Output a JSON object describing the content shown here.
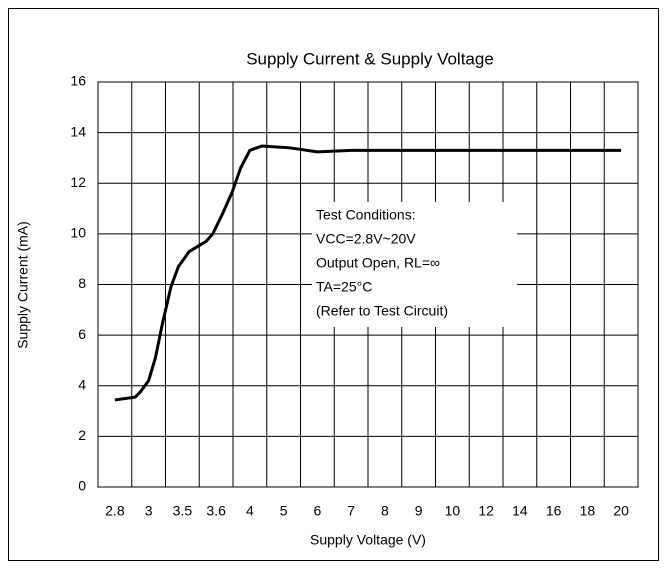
{
  "chart_data": {
    "type": "line",
    "title": "Supply Current & Supply Voltage",
    "x_label": "Supply Voltage (V)",
    "y_label": "Supply Current (mA)",
    "xticks": [
      2.8,
      3,
      3.5,
      3.6,
      4,
      5,
      6,
      7,
      8,
      9,
      10,
      12,
      14,
      16,
      18,
      20
    ],
    "ylim": [
      0,
      16
    ],
    "yticks": [
      0,
      2,
      4,
      6,
      8,
      10,
      12,
      14,
      16
    ],
    "grid": true,
    "series": [
      {
        "name": "Supply Current",
        "color": "#000000",
        "x": [
          2.8,
          2.92,
          2.95,
          3.0,
          3.1,
          3.2,
          3.33,
          3.44,
          3.52,
          3.57,
          3.59,
          3.67,
          3.79,
          3.89,
          4.0,
          4.35,
          5.18,
          6.0,
          7,
          10,
          20
        ],
        "values": [
          3.44,
          3.55,
          3.75,
          4.2,
          5.1,
          6.4,
          7.9,
          8.7,
          9.3,
          9.7,
          10.0,
          10.75,
          11.65,
          12.6,
          13.3,
          13.47,
          13.4,
          13.24,
          13.3,
          13.3,
          13.3
        ]
      }
    ],
    "annotation": [
      "Test Conditions:",
      "VCC=2.8V~20V",
      "Output Open, RL=∞",
      "TA=25°C",
      "(Refer to Test Circuit)"
    ]
  }
}
